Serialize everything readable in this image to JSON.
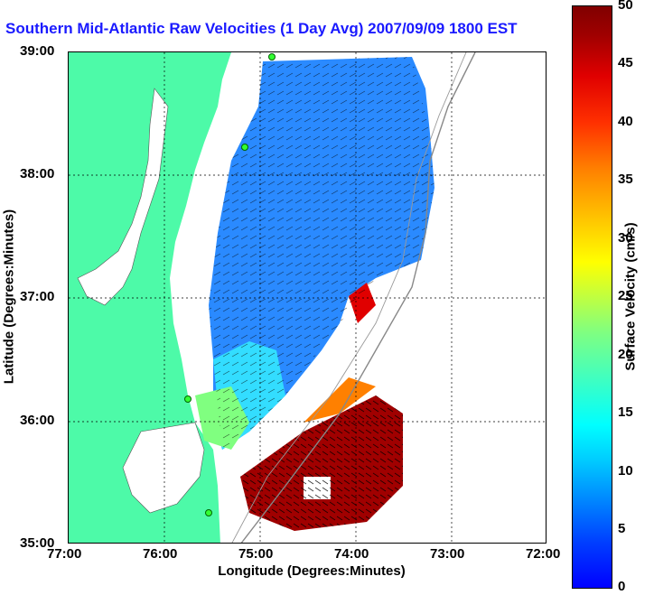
{
  "title": "Southern Mid-Atlantic Raw Velocities (1 Day Avg) 2007/09/09 1800 EST",
  "map": {
    "xlabel": "Longitude (Degrees:Minutes)",
    "ylabel": "Latitude (Degrees:Minutes)",
    "xticks": [
      "77:00",
      "76:00",
      "75:00",
      "74:00",
      "73:00",
      "72:00"
    ],
    "yticks": [
      "39:00",
      "38:00",
      "37:00",
      "36:00",
      "35:00"
    ],
    "land_color": "#4dfaa8",
    "grid": "dotted"
  },
  "colorbar": {
    "label": "Surface Velocity (cm/s)",
    "ticks": [
      "50",
      "45",
      "40",
      "35",
      "30",
      "25",
      "20",
      "15",
      "10",
      "5",
      "0"
    ],
    "range": [
      0,
      50
    ]
  }
}
